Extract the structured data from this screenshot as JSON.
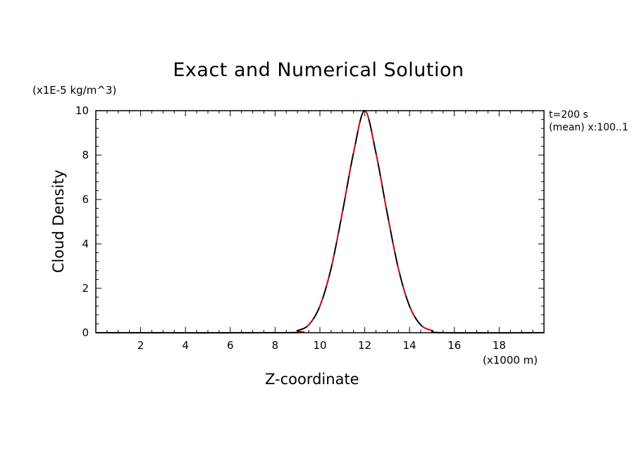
{
  "chart_data": {
    "type": "line",
    "title": "Exact and Numerical Solution",
    "xlabel": "Z-coordinate",
    "ylabel": "Cloud Density",
    "x_unit": "(x1000 m)",
    "y_unit": "(x1E-5 kg/m^3)",
    "annotations": [
      "t=200 s",
      "(mean) x:100..1"
    ],
    "xlim": [
      0,
      20
    ],
    "ylim": [
      0,
      10
    ],
    "x_ticks": [
      2,
      4,
      6,
      8,
      10,
      12,
      14,
      16,
      18
    ],
    "y_ticks": [
      0,
      2,
      4,
      6,
      8,
      10
    ],
    "grid": false,
    "legend": "none",
    "series": [
      {
        "color": "#000000",
        "style": "solid",
        "x": [
          0,
          8.5,
          9.0,
          9.5,
          10.0,
          10.5,
          11.0,
          11.5,
          12.0,
          12.5,
          13.0,
          13.5,
          14.0,
          14.5,
          15.0,
          15.5,
          20
        ],
        "values": [
          0,
          0,
          0.1,
          0.35,
          1.2,
          2.9,
          5.4,
          8.1,
          10.0,
          8.1,
          5.4,
          2.9,
          1.2,
          0.35,
          0.1,
          0,
          0
        ]
      },
      {
        "color": "#ff0000",
        "style": "dashed",
        "x": [
          0,
          8.5,
          9.0,
          9.5,
          10.0,
          10.5,
          11.0,
          11.5,
          12.0,
          12.5,
          13.0,
          13.5,
          14.0,
          14.5,
          15.0,
          15.5,
          20
        ],
        "values": [
          0,
          0,
          0.1,
          0.35,
          1.2,
          2.9,
          5.4,
          8.1,
          10.0,
          8.1,
          5.4,
          2.9,
          1.2,
          0.35,
          0.1,
          0,
          0
        ]
      }
    ]
  }
}
